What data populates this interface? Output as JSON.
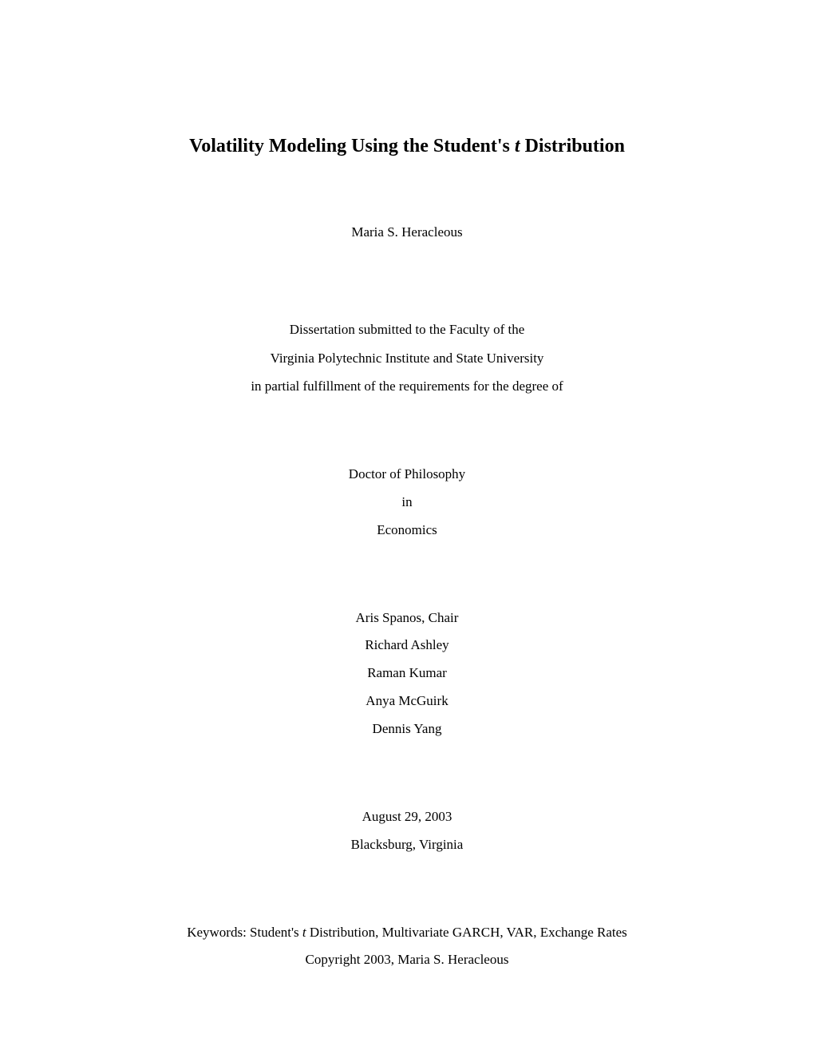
{
  "title": {
    "prefix": "Volatility Modeling Using the Student's ",
    "italic": "t",
    "suffix": " Distribution"
  },
  "author": "Maria S. Heracleous",
  "submission": {
    "line1": "Dissertation submitted to the Faculty of the",
    "line2": "Virginia Polytechnic Institute and State University",
    "line3": "in partial fulfillment of the requirements for the degree of"
  },
  "degree": {
    "line1": "Doctor of Philosophy",
    "line2": "in",
    "line3": "Economics"
  },
  "committee": [
    "Aris Spanos, Chair",
    "Richard Ashley",
    "Raman Kumar",
    "Anya McGuirk",
    "Dennis Yang"
  ],
  "dateloc": {
    "date": "August 29, 2003",
    "location": "Blacksburg, Virginia"
  },
  "keywords": {
    "prefix": "Keywords: Student's ",
    "italic": "t",
    "suffix": " Distribution, Multivariate GARCH, VAR, Exchange Rates"
  },
  "copyright": "Copyright 2003, Maria S. Heracleous"
}
